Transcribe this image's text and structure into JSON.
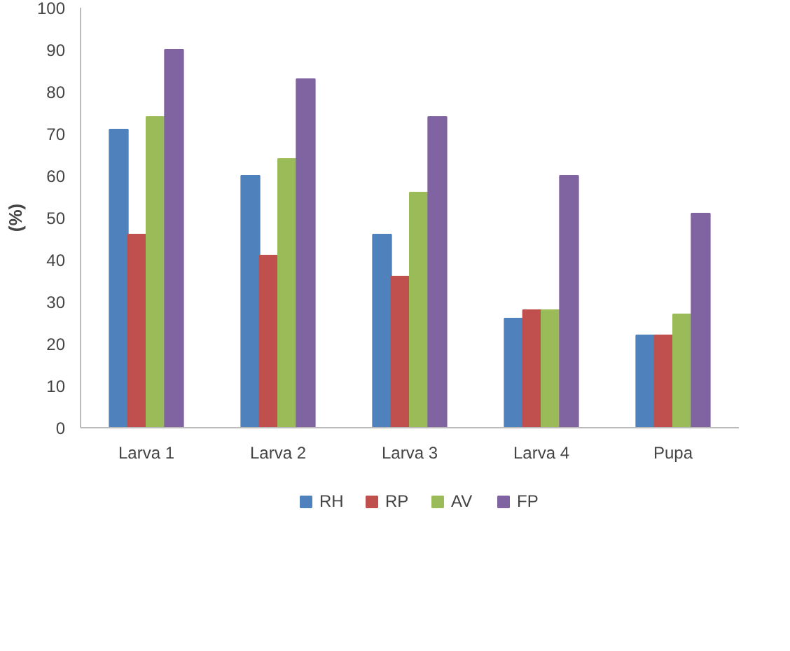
{
  "chart_data": {
    "type": "bar",
    "ylabel": "(%)",
    "categories": [
      "Larva 1",
      "Larva 2",
      "Larva 3",
      "Larva 4",
      "Pupa"
    ],
    "series": [
      {
        "name": "RH",
        "color": "#4f81bd",
        "values": [
          71,
          60,
          46,
          26,
          22
        ]
      },
      {
        "name": "RP",
        "color": "#c0504d",
        "values": [
          46,
          41,
          36,
          28,
          22
        ]
      },
      {
        "name": "AV",
        "color": "#9bbb59",
        "values": [
          74,
          64,
          56,
          28,
          27
        ]
      },
      {
        "name": "FP",
        "color": "#8064a2",
        "values": [
          90,
          83,
          74,
          60,
          51
        ]
      }
    ],
    "ylim": [
      0,
      100
    ],
    "yticks": [
      0,
      10,
      20,
      30,
      40,
      50,
      60,
      70,
      80,
      90,
      100
    ],
    "grid": false,
    "legend": "bottom"
  }
}
